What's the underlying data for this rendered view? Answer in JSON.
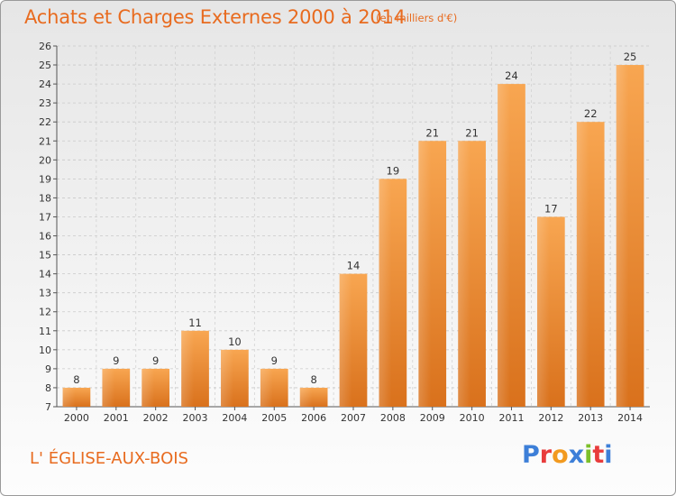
{
  "header": {
    "title": "Achats et Charges Externes 2000 à 2014",
    "subtitle": "(en milliers d'€)"
  },
  "footer": {
    "location": "L' ÉGLISE-AUX-BOIS",
    "logo_text": "Proxiti",
    "logo_colors": [
      "#3d7fd8",
      "#e83c3c",
      "#f29a1f",
      "#3d7fd8",
      "#7cbf2a",
      "#e83c3c",
      "#3d7fd8"
    ]
  },
  "chart_data": {
    "type": "bar",
    "title": "Achats et Charges Externes 2000 à 2014",
    "xlabel": "",
    "ylabel": "",
    "categories": [
      "2000",
      "2001",
      "2002",
      "2003",
      "2004",
      "2005",
      "2006",
      "2007",
      "2008",
      "2009",
      "2010",
      "2011",
      "2012",
      "2013",
      "2014"
    ],
    "values": [
      8,
      9,
      9,
      11,
      10,
      9,
      8,
      14,
      19,
      21,
      21,
      24,
      17,
      22,
      25
    ],
    "ylim": [
      7,
      26
    ],
    "yticks": [
      7,
      8,
      9,
      10,
      11,
      12,
      13,
      14,
      15,
      16,
      17,
      18,
      19,
      20,
      21,
      22,
      23,
      24,
      25,
      26
    ],
    "grid": true,
    "bar_color": "#f09a3e",
    "bar_color_dark": "#d8731f"
  }
}
